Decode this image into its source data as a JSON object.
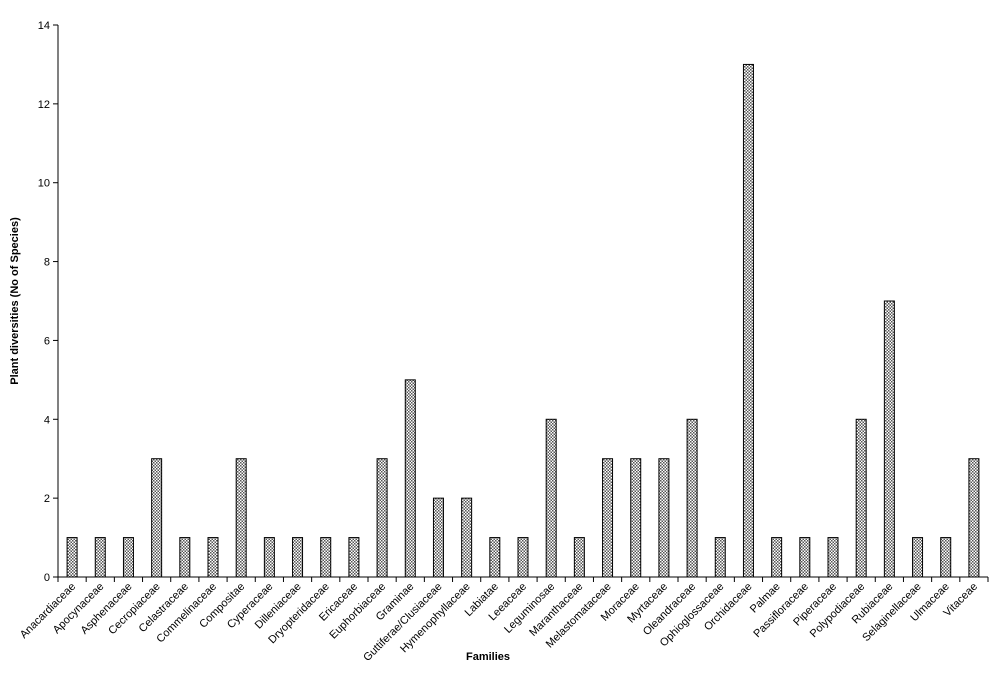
{
  "chart_data": {
    "type": "bar",
    "x_label": "Families",
    "y_label": "Plant diversities (No of Species)",
    "categories": [
      "Anacardiaceae",
      "Apocynaceae",
      "Asphenaceae",
      "Cecropiaceae",
      "Celastraceae",
      "Commelinaceae",
      "Compositae",
      "Cyperaceae",
      "Dilleniaceae",
      "Dryopteridaceae",
      "Ericaceae",
      "Euphorbiaceae",
      "Graminae",
      "Guttiferae/Clusiaceae",
      "Hymenophyllaceae",
      "Labiatae",
      "Leeaceae",
      "Leguminosae",
      "Maranthaceae",
      "Melastomataceae",
      "Moraceae",
      "Myrtaceae",
      "Oleandraceae",
      "Ophioglossaceae",
      "Orchidaceae",
      "Palmae",
      "Passifloraceae",
      "Piperaceae",
      "Polypodiaceae",
      "Rubiaceae",
      "Selaginellaceae",
      "Ulmaceae",
      "Vitaceae"
    ],
    "values": [
      1,
      1,
      1,
      3,
      1,
      1,
      3,
      1,
      1,
      1,
      1,
      3,
      5,
      2,
      2,
      1,
      1,
      4,
      1,
      3,
      3,
      3,
      4,
      1,
      13,
      1,
      1,
      1,
      4,
      7,
      1,
      1,
      3
    ],
    "color": "#000000",
    "ylim": [
      0,
      14
    ],
    "yticks": [
      0,
      2,
      4,
      6,
      8,
      10,
      12,
      14
    ],
    "grid": false
  }
}
